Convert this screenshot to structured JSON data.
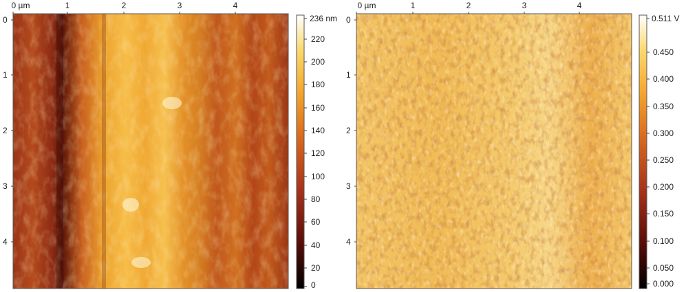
{
  "panels": [
    {
      "x_axis": {
        "ticks": [
          "0 µm",
          "1",
          "2",
          "3",
          "4"
        ]
      },
      "y_axis": {
        "ticks": [
          "0",
          "1",
          "2",
          "3",
          "4"
        ]
      },
      "colorbar": {
        "max_label": "236 nm",
        "ticks": [
          "220",
          "200",
          "180",
          "160",
          "140",
          "120",
          "100",
          "80",
          "60",
          "40",
          "20",
          "0"
        ],
        "colors": [
          "#000000",
          "#5a0e08",
          "#a3301a",
          "#d9681e",
          "#f4a72e",
          "#fbd86c",
          "#ffffff"
        ]
      }
    },
    {
      "x_axis": {
        "ticks": [
          "0 µm",
          "1",
          "2",
          "3",
          "4"
        ]
      },
      "y_axis": {
        "ticks": [
          "0",
          "1",
          "2",
          "3",
          "4"
        ]
      },
      "colorbar": {
        "max_label": "0.511 V",
        "ticks": [
          "0.450",
          "0.400",
          "0.350",
          "0.300",
          "0.250",
          "0.200",
          "0.150",
          "0.100",
          "0.050",
          "0.000"
        ],
        "colors": [
          "#000000",
          "#5a0e08",
          "#a3301a",
          "#d9681e",
          "#f4a72e",
          "#fbd86c",
          "#ffffff"
        ]
      }
    }
  ]
}
